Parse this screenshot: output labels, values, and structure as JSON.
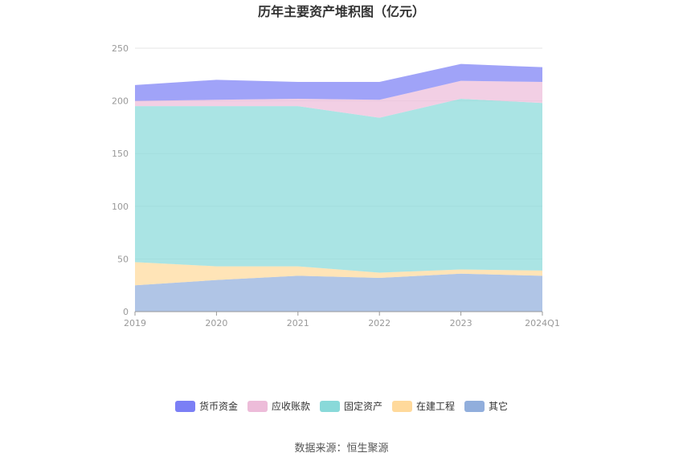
{
  "chart_data": {
    "type": "area",
    "stacked": true,
    "title": "历年主要资产堆积图（亿元）",
    "categories": [
      "2019",
      "2020",
      "2021",
      "2022",
      "2023",
      "2024Q1"
    ],
    "ylim": [
      0,
      250
    ],
    "yticks": [
      0,
      50,
      100,
      150,
      200,
      250
    ],
    "grid": true,
    "legend_position": "bottom",
    "series": [
      {
        "name": "其它",
        "color": "#91aedc",
        "values": [
          25,
          30,
          34,
          32,
          36,
          34
        ]
      },
      {
        "name": "在建工程",
        "color": "#ffd99b",
        "values": [
          22,
          13,
          9,
          5,
          4,
          5
        ]
      },
      {
        "name": "固定资产",
        "color": "#89d9d9",
        "values": [
          148,
          152,
          152,
          147,
          162,
          159
        ]
      },
      {
        "name": "应收账款",
        "color": "#edbcd9",
        "values": [
          5,
          6,
          7,
          17,
          17,
          20
        ]
      },
      {
        "name": "货币资金",
        "color": "#7b7ff5",
        "values": [
          15,
          19,
          16,
          17,
          16,
          14
        ]
      }
    ]
  },
  "source_text": "数据来源：恒生聚源"
}
